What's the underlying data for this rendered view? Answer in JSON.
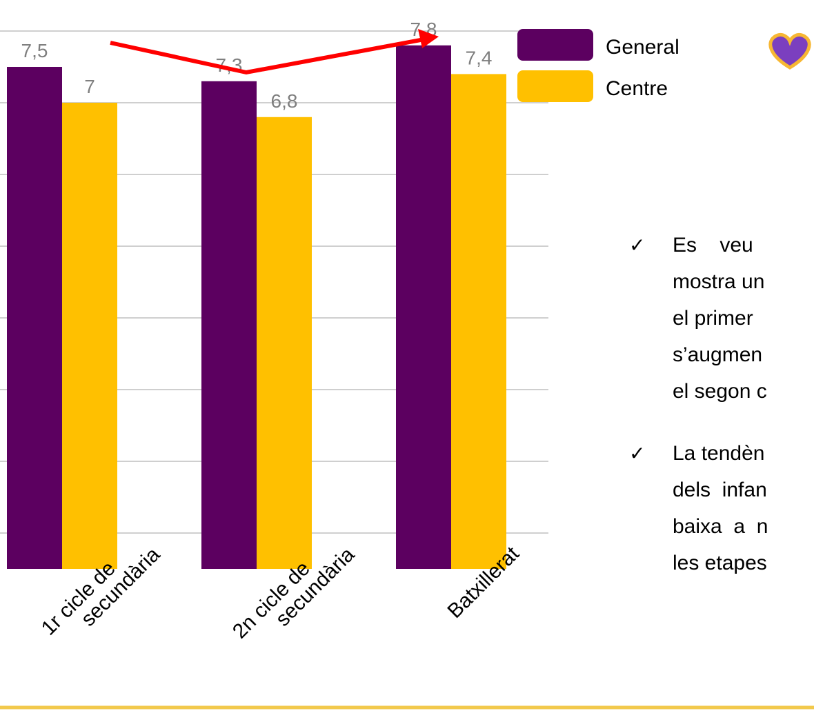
{
  "chart_data": {
    "type": "bar",
    "categories": [
      "1r cicle de\nsecundària",
      "2n cicle de\nsecundària",
      "Batxillerat"
    ],
    "series": [
      {
        "name": "General",
        "color": "#5c0060",
        "values": [
          7.5,
          7.3,
          7.8
        ],
        "value_labels": [
          "7,5",
          "7,3",
          "7,8"
        ]
      },
      {
        "name": "Centre",
        "color": "#ffc000",
        "values": [
          7,
          6.8,
          7.4
        ],
        "value_labels": [
          "7",
          "6,8",
          "7,4"
        ]
      }
    ],
    "ylim": [
      0.5,
      8
    ],
    "yticks": [
      1,
      2,
      3,
      4,
      5,
      6,
      7,
      8
    ],
    "grid": true
  },
  "notes": [
    {
      "symbol": "✓",
      "lines": [
        "Es    veu",
        "mostra un",
        "el primer",
        "s’augmen",
        "el segon c"
      ]
    },
    {
      "symbol": "✓",
      "lines": [
        "La tendèn",
        "dels  infan",
        "baixa  a  n",
        "les etapes"
      ]
    }
  ]
}
